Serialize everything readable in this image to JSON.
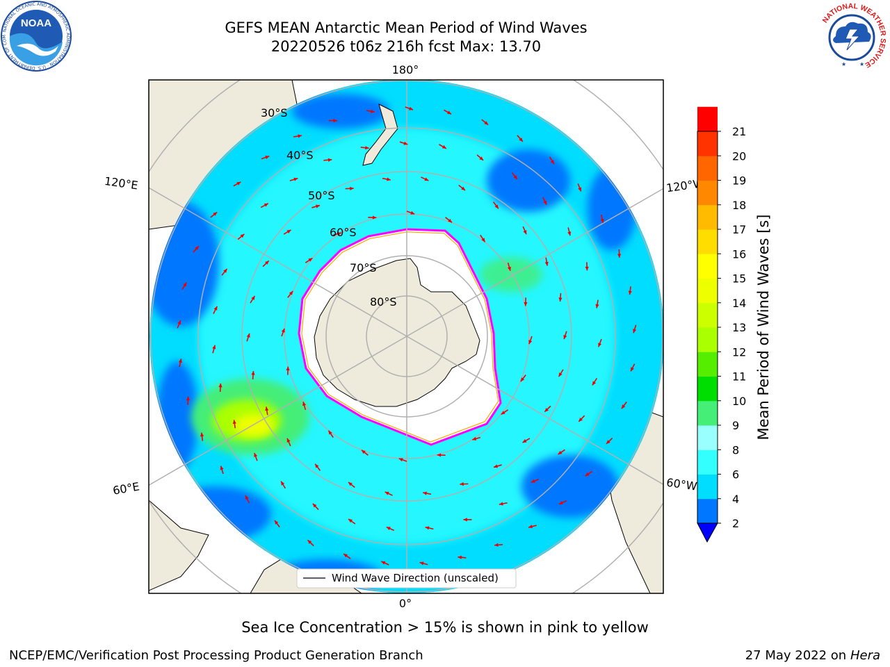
{
  "header": {
    "title_line_1": "GEFS MEAN Antarctic Mean Period of Wind Waves",
    "title_line_2": "20220526 t06z 216h fcst   Max: 13.70"
  },
  "map": {
    "projection": "south-polar-stereographic",
    "longitude_labels": {
      "top": "180°",
      "bottom": "0°",
      "left_upper": "120°E",
      "left_lower": "60°E",
      "right_upper": "120°W",
      "right_lower": "60°W"
    },
    "latitude_labels": [
      "30°S",
      "40°S",
      "50°S",
      "60°S",
      "70°S",
      "80°S"
    ],
    "legend_label": "Wind Wave Direction (unscaled)",
    "arrow_color": "#ee0000",
    "land_color": "#efebdc",
    "sea_ice_color": "#ffffff",
    "sea_ice_edge_colors": [
      "#ff00ff",
      "#ffa500",
      "#ffff00"
    ]
  },
  "colorbar": {
    "label": "Mean Period of Wind Waves [s]",
    "ticks": [
      "2",
      "4",
      "6",
      "8",
      "9",
      "10",
      "11",
      "12",
      "13",
      "14",
      "15",
      "16",
      "17",
      "18",
      "19",
      "20",
      "21"
    ],
    "colors": [
      "#0077ff",
      "#00ddff",
      "#33ffff",
      "#99ffff",
      "#44ee77",
      "#00dd00",
      "#55ee00",
      "#aaff00",
      "#ccff00",
      "#eeff00",
      "#ffff00",
      "#ffdd00",
      "#ffbb00",
      "#ff8800",
      "#ff6600",
      "#ff3300",
      "#ff0000"
    ],
    "under_color": "#0000ff"
  },
  "footer": {
    "note": "Sea Ice Concentration > 15% is shown in pink to yellow",
    "credit_left": "NCEP/EMC/Verification Post Processing Product Generation Branch",
    "credit_right_date": "27 May 2022 on",
    "credit_right_machine": "Hera"
  },
  "logos": {
    "noaa_text": "NOAA",
    "noaa_ring_text": "NATIONAL OCEANIC AND ATMOSPHERIC ADMINISTRATION · U.S. DEPARTMENT OF COMMERCE",
    "nws_ring_text": "NATIONAL WEATHER SERVICE"
  }
}
